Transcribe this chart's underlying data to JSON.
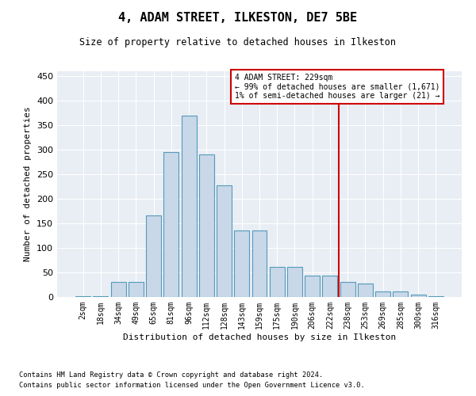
{
  "title": "4, ADAM STREET, ILKESTON, DE7 5BE",
  "subtitle": "Size of property relative to detached houses in Ilkeston",
  "xlabel": "Distribution of detached houses by size in Ilkeston",
  "ylabel": "Number of detached properties",
  "footnote1": "Contains HM Land Registry data © Crown copyright and database right 2024.",
  "footnote2": "Contains public sector information licensed under the Open Government Licence v3.0.",
  "bar_labels": [
    "2sqm",
    "18sqm",
    "34sqm",
    "49sqm",
    "65sqm",
    "81sqm",
    "96sqm",
    "112sqm",
    "128sqm",
    "143sqm",
    "159sqm",
    "175sqm",
    "190sqm",
    "206sqm",
    "222sqm",
    "238sqm",
    "253sqm",
    "269sqm",
    "285sqm",
    "300sqm",
    "316sqm"
  ],
  "bar_values": [
    2,
    2,
    30,
    30,
    167,
    295,
    370,
    290,
    228,
    135,
    135,
    62,
    62,
    43,
    43,
    30,
    27,
    12,
    12,
    5,
    2
  ],
  "bar_color": "#c8d8e8",
  "bar_edge_color": "#5599bb",
  "annotation_line_color": "#cc0000",
  "annotation_box_text": "4 ADAM STREET: 229sqm\n← 99% of detached houses are smaller (1,671)\n1% of semi-detached houses are larger (21) →",
  "annotation_box_color": "#cc0000",
  "ylim": [
    0,
    460
  ],
  "yticks": [
    0,
    50,
    100,
    150,
    200,
    250,
    300,
    350,
    400,
    450
  ],
  "plot_bg_color": "#e8eef4"
}
